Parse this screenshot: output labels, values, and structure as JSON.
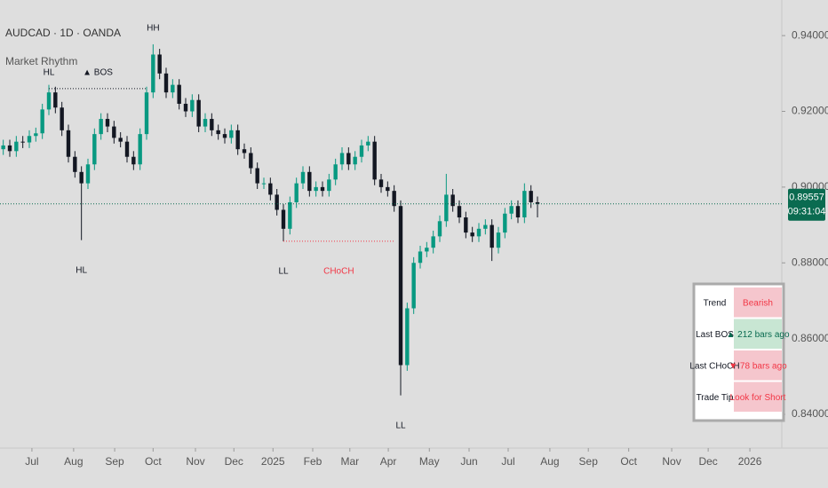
{
  "header": {
    "symbol": "AUDCAD · 1D · OANDA",
    "indicator": "Market Rhythm"
  },
  "chart_data": {
    "type": "candlestick",
    "up_color": "#089981",
    "down_color": "#131722",
    "xlim": [
      -0.5,
      119.5
    ],
    "ylim": [
      0.8311,
      0.9494
    ],
    "yticks": [
      {
        "value": 0.94,
        "label": "0.94000"
      },
      {
        "value": 0.92,
        "label": "0.92000"
      },
      {
        "value": 0.9,
        "label": "0.90000"
      },
      {
        "value": 0.88,
        "label": "0.88000"
      },
      {
        "value": 0.86,
        "label": "0.86000"
      },
      {
        "value": 0.84,
        "label": "0.84000"
      }
    ],
    "xticks": [
      {
        "value": 4.4,
        "label": "Jul"
      },
      {
        "value": 10.8,
        "label": "Aug"
      },
      {
        "value": 17.1,
        "label": "Sep"
      },
      {
        "value": 23.0,
        "label": "Oct"
      },
      {
        "value": 29.5,
        "label": "Nov"
      },
      {
        "value": 35.4,
        "label": "Dec"
      },
      {
        "value": 41.4,
        "label": "2025"
      },
      {
        "value": 47.5,
        "label": "Feb"
      },
      {
        "value": 53.2,
        "label": "Mar"
      },
      {
        "value": 59.1,
        "label": "Apr"
      },
      {
        "value": 65.4,
        "label": "May"
      },
      {
        "value": 71.5,
        "label": "Jun"
      },
      {
        "value": 77.5,
        "label": "Jul"
      },
      {
        "value": 83.9,
        "label": "Aug"
      },
      {
        "value": 89.8,
        "label": "Sep"
      },
      {
        "value": 96.0,
        "label": "Oct"
      },
      {
        "value": 102.6,
        "label": "Nov"
      },
      {
        "value": 108.2,
        "label": "Dec"
      },
      {
        "value": 114.6,
        "label": "2026"
      }
    ],
    "open": [
      0.91,
      0.911,
      0.9095,
      0.912,
      0.9118,
      0.9135,
      0.9142,
      0.9205,
      0.925,
      0.921,
      0.915,
      0.908,
      0.904,
      0.901,
      0.906,
      0.914,
      0.918,
      0.916,
      0.913,
      0.912,
      0.908,
      0.906,
      0.914,
      0.925,
      0.935,
      0.93,
      0.925,
      0.927,
      0.922,
      0.92,
      0.923,
      0.916,
      0.918,
      0.915,
      0.914,
      0.913,
      0.915,
      0.91,
      0.909,
      0.905,
      0.901,
      0.901,
      0.898,
      0.894,
      0.889,
      0.896,
      0.901,
      0.904,
      0.899,
      0.9,
      0.899,
      0.902,
      0.906,
      0.909,
      0.906,
      0.908,
      0.911,
      0.912,
      0.902,
      0.9,
      0.899,
      0.895,
      0.853,
      0.868,
      0.88,
      0.883,
      0.884,
      0.887,
      0.891,
      0.898,
      0.895,
      0.892,
      0.888,
      0.887,
      0.889,
      0.89,
      0.884,
      0.888,
      0.893,
      0.895,
      0.892,
      0.899,
      0.896
    ],
    "high": [
      0.9125,
      0.9125,
      0.9135,
      0.9135,
      0.915,
      0.9157,
      0.922,
      0.927,
      0.9265,
      0.9225,
      0.9165,
      0.9095,
      0.9055,
      0.9075,
      0.9155,
      0.9195,
      0.9195,
      0.9175,
      0.9145,
      0.9135,
      0.9095,
      0.9155,
      0.9265,
      0.9377,
      0.9365,
      0.9315,
      0.9285,
      0.9285,
      0.9235,
      0.9245,
      0.9245,
      0.9195,
      0.9195,
      0.9165,
      0.9155,
      0.9165,
      0.9165,
      0.9115,
      0.9105,
      0.9065,
      0.9025,
      0.9025,
      0.8995,
      0.8955,
      0.8975,
      0.9025,
      0.9055,
      0.9055,
      0.9015,
      0.9015,
      0.9035,
      0.9075,
      0.9105,
      0.9105,
      0.9095,
      0.9125,
      0.9135,
      0.9135,
      0.9035,
      0.9015,
      0.9005,
      0.8965,
      0.8695,
      0.8815,
      0.8845,
      0.8855,
      0.8885,
      0.8925,
      0.9035,
      0.8995,
      0.8965,
      0.8935,
      0.8895,
      0.8905,
      0.8915,
      0.8915,
      0.8895,
      0.8945,
      0.8965,
      0.8965,
      0.901,
      0.9005,
      0.8975
    ],
    "low": [
      0.9085,
      0.908,
      0.908,
      0.9103,
      0.9103,
      0.912,
      0.9127,
      0.919,
      0.9195,
      0.9135,
      0.9065,
      0.9025,
      0.886,
      0.8995,
      0.9045,
      0.9125,
      0.9145,
      0.9115,
      0.9105,
      0.9065,
      0.9045,
      0.9045,
      0.9125,
      0.9235,
      0.9285,
      0.9235,
      0.9235,
      0.9205,
      0.9185,
      0.9185,
      0.9145,
      0.9145,
      0.9135,
      0.9125,
      0.9115,
      0.9115,
      0.9085,
      0.9075,
      0.9035,
      0.8995,
      0.8995,
      0.8965,
      0.8925,
      0.8857,
      0.8875,
      0.8945,
      0.8995,
      0.8975,
      0.8975,
      0.8975,
      0.8975,
      0.9005,
      0.9045,
      0.9045,
      0.9045,
      0.9065,
      0.9095,
      0.9005,
      0.8985,
      0.8975,
      0.8935,
      0.845,
      0.8515,
      0.8665,
      0.8785,
      0.8815,
      0.8825,
      0.8855,
      0.8895,
      0.8935,
      0.8905,
      0.8865,
      0.8855,
      0.8855,
      0.8875,
      0.8805,
      0.8825,
      0.8865,
      0.8915,
      0.8905,
      0.8905,
      0.8945,
      0.892
    ],
    "close": [
      0.911,
      0.9095,
      0.912,
      0.9118,
      0.9135,
      0.9142,
      0.9205,
      0.925,
      0.921,
      0.915,
      0.908,
      0.904,
      0.901,
      0.906,
      0.914,
      0.918,
      0.916,
      0.913,
      0.912,
      0.908,
      0.906,
      0.914,
      0.925,
      0.935,
      0.93,
      0.925,
      0.927,
      0.922,
      0.92,
      0.923,
      0.916,
      0.918,
      0.915,
      0.914,
      0.913,
      0.915,
      0.91,
      0.909,
      0.905,
      0.901,
      0.901,
      0.898,
      0.894,
      0.889,
      0.896,
      0.901,
      0.904,
      0.899,
      0.9,
      0.899,
      0.902,
      0.906,
      0.909,
      0.906,
      0.908,
      0.911,
      0.912,
      0.902,
      0.9,
      0.899,
      0.895,
      0.853,
      0.868,
      0.88,
      0.883,
      0.884,
      0.887,
      0.891,
      0.898,
      0.895,
      0.892,
      0.888,
      0.887,
      0.889,
      0.89,
      0.884,
      0.888,
      0.893,
      0.895,
      0.892,
      0.899,
      0.896,
      0.8956
    ],
    "annotations": [
      {
        "text": "HH",
        "x": 23,
        "y": 0.9377,
        "pos": "above",
        "color": "#131722"
      },
      {
        "text": "HL",
        "x": 12,
        "y": 0.886,
        "pos": "below",
        "color": "#131722"
      },
      {
        "text": "LL",
        "x": 43,
        "y": 0.8857,
        "pos": "below",
        "color": "#131722"
      },
      {
        "text": "CHoCH",
        "x": 51.5,
        "y": 0.8857,
        "pos": "below",
        "color": "#f23645"
      },
      {
        "text": "LL",
        "x": 61,
        "y": 0.845,
        "pos": "below",
        "color": "#131722"
      },
      {
        "text": "▲ BOS",
        "x": 14.5,
        "y": 0.926,
        "pos": "above",
        "color": "#131722"
      },
      {
        "text": "HL",
        "x": 7,
        "y": 0.926,
        "pos": "above",
        "color": "#131722"
      }
    ],
    "levels": [
      {
        "y": 0.926,
        "x": [
          7,
          22
        ],
        "color": "#131722"
      },
      {
        "y": 0.8857,
        "x": [
          43,
          60
        ],
        "color": "#f23645"
      }
    ],
    "last_price": {
      "value": 0.89557,
      "label": "0.89557",
      "countdown": "09:31:04",
      "color": "#0a6b50"
    }
  },
  "table": {
    "rows": [
      [
        "Trend",
        "Bearish"
      ],
      [
        "Last BOS",
        "▲ 212 bars ago"
      ],
      [
        "Last CHoCH",
        "▼ 78 bars ago"
      ],
      [
        "Trade Tip",
        "Look for Short"
      ]
    ]
  }
}
